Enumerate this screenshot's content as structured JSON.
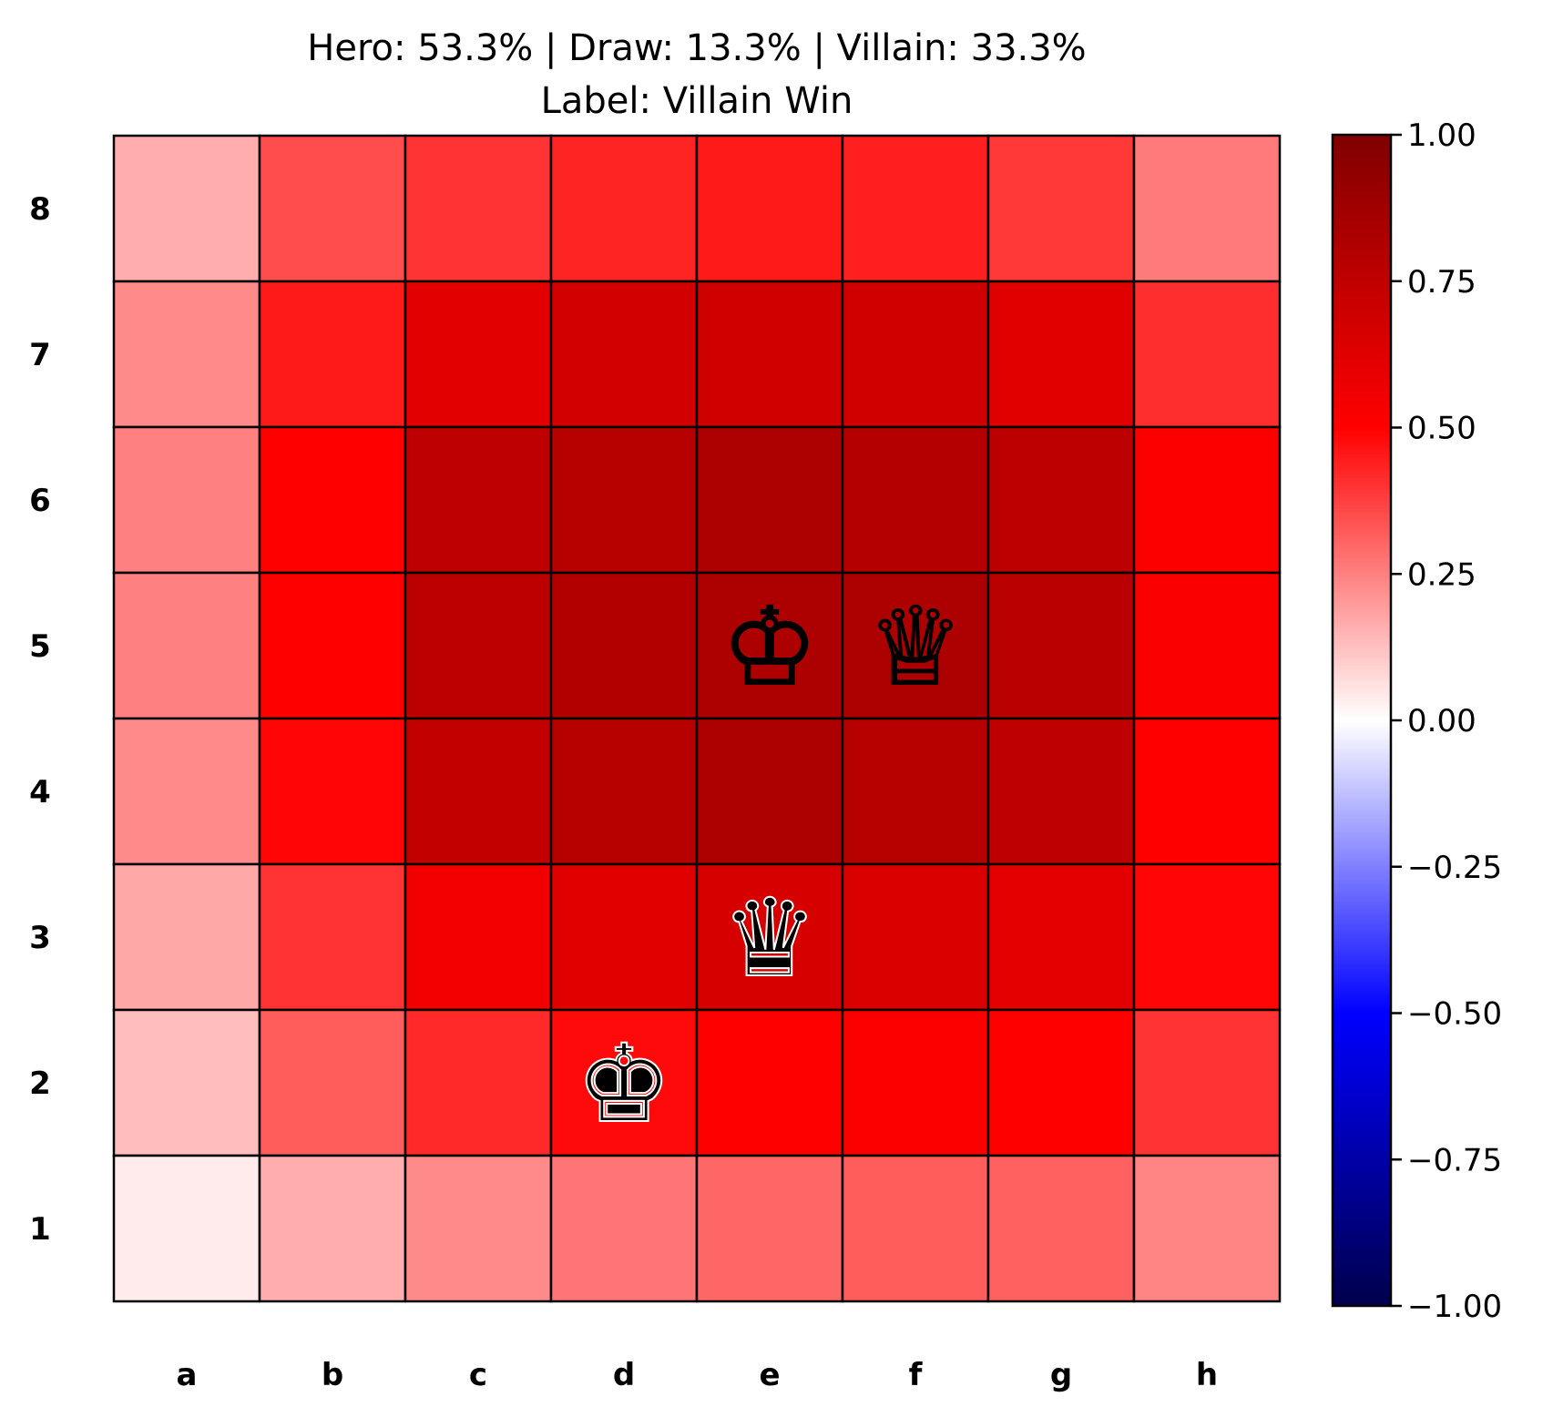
{
  "chart_data": {
    "type": "heatmap",
    "title": "Hero: 53.3% | Draw: 13.3% | Villain: 33.3%",
    "subtitle": "Label: Villain Win",
    "files": [
      "a",
      "b",
      "c",
      "d",
      "e",
      "f",
      "g",
      "h"
    ],
    "ranks": [
      "8",
      "7",
      "6",
      "5",
      "4",
      "3",
      "2",
      "1"
    ],
    "values": [
      [
        0.16,
        0.35,
        0.4,
        0.43,
        0.45,
        0.44,
        0.39,
        0.26
      ],
      [
        0.23,
        0.45,
        0.61,
        0.67,
        0.69,
        0.68,
        0.62,
        0.41
      ],
      [
        0.25,
        0.5,
        0.75,
        0.78,
        0.82,
        0.79,
        0.76,
        0.51
      ],
      [
        0.25,
        0.5,
        0.76,
        0.8,
        0.82,
        0.82,
        0.77,
        0.52
      ],
      [
        0.23,
        0.49,
        0.74,
        0.78,
        0.82,
        0.78,
        0.75,
        0.5
      ],
      [
        0.17,
        0.4,
        0.55,
        0.62,
        0.66,
        0.64,
        0.6,
        0.49
      ],
      [
        0.13,
        0.32,
        0.42,
        0.48,
        0.5,
        0.51,
        0.5,
        0.4
      ],
      [
        0.04,
        0.16,
        0.23,
        0.27,
        0.3,
        0.32,
        0.31,
        0.24
      ]
    ],
    "pieces": [
      {
        "square": "e5",
        "glyph": "♔",
        "color": "white"
      },
      {
        "square": "f5",
        "glyph": "♕",
        "color": "white"
      },
      {
        "square": "e3",
        "glyph": "♛",
        "color": "black"
      },
      {
        "square": "d2",
        "glyph": "♚",
        "color": "black"
      }
    ],
    "colorbar": {
      "range": [
        -1.0,
        1.0
      ],
      "ticks": [
        "1.00",
        "0.75",
        "0.50",
        "0.25",
        "0.00",
        "−0.25",
        "−0.50",
        "−0.75",
        "−1.00"
      ],
      "tick_values": [
        1.0,
        0.75,
        0.5,
        0.25,
        0.0,
        -0.25,
        -0.5,
        -0.75,
        -1.0
      ],
      "colormap": "seismic"
    },
    "grid": true
  }
}
